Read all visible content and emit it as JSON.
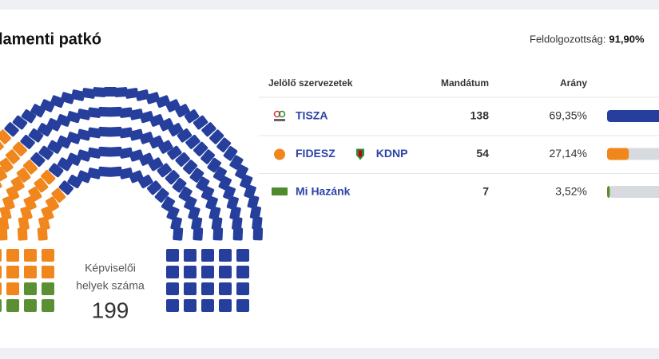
{
  "header": {
    "title": "lamenti patkó",
    "progress_label": "Feldolgozottság:",
    "progress": {
      "value": 91.9,
      "label": "91,90%"
    }
  },
  "seats": {
    "label_line1": "Képviselői",
    "label_line2": "helyek száma",
    "total": 199
  },
  "table": {
    "columns": [
      "Jelölő szervezetek",
      "Mandátum",
      "Arány"
    ],
    "rows": [
      {
        "names": [
          "TISZA"
        ],
        "logo": "TISZA",
        "color": "#263f9c",
        "mandates": 138,
        "share": 69.35,
        "share_label": "69,35%"
      },
      {
        "names": [
          "FIDESZ",
          "KDNP"
        ],
        "logo": "FIDESZ",
        "color": "#f0861c",
        "mandates": 54,
        "share": 27.14,
        "share_label": "27,14%"
      },
      {
        "names": [
          "Mi Hazánk"
        ],
        "logo": "Mi Hazánk",
        "color": "#5b8f34",
        "mandates": 7,
        "share": 3.52,
        "share_label": "3,52%"
      }
    ]
  }
}
